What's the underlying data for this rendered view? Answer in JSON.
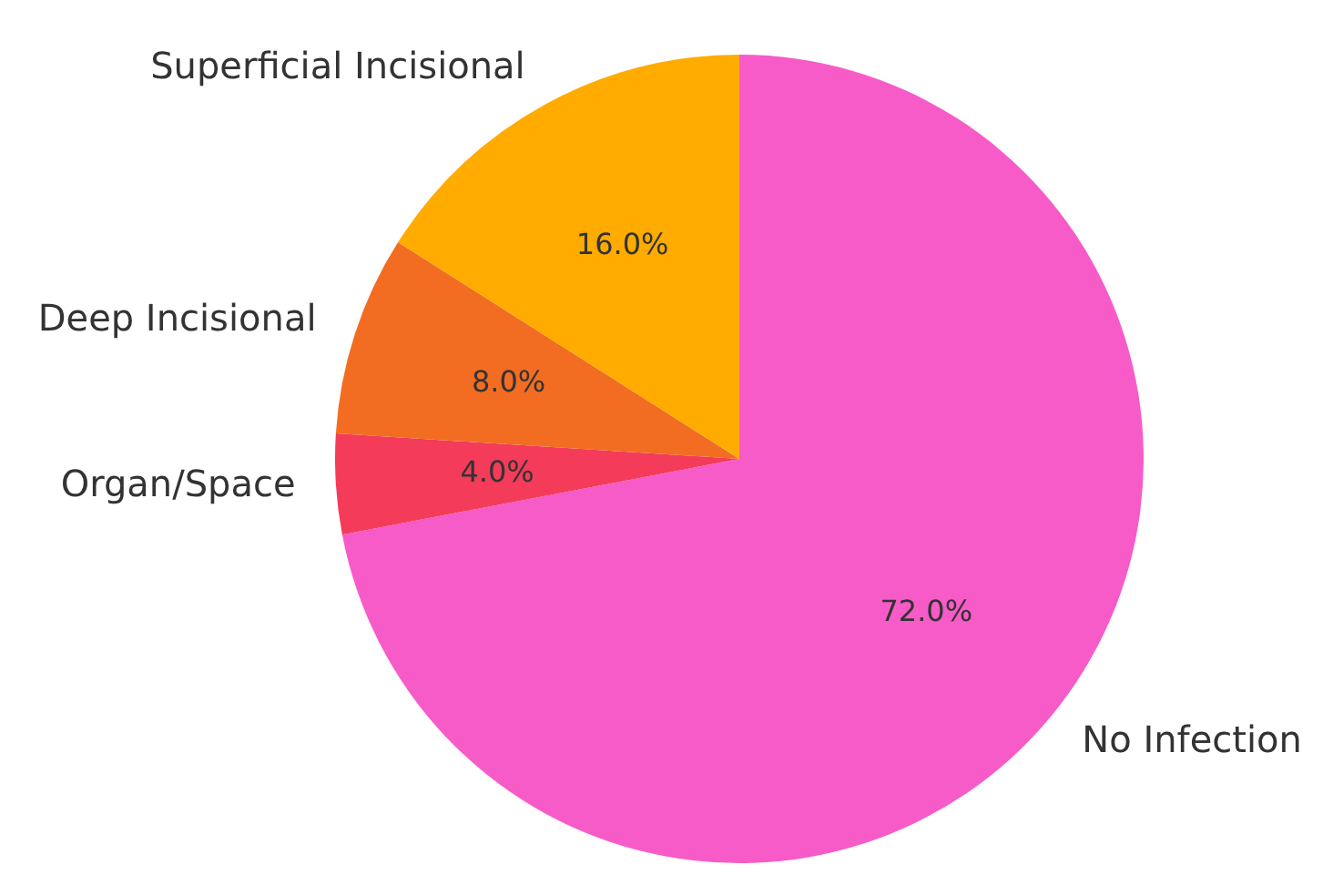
{
  "chart_data": {
    "type": "pie",
    "categories": [
      "No Infection",
      "Organ/Space",
      "Deep Incisional",
      "Superficial Incisional"
    ],
    "values": [
      72,
      4,
      8,
      16
    ],
    "colors": [
      "#f75bc8",
      "#f43b5a",
      "#f26d22",
      "#ffab00"
    ],
    "value_labels": [
      "72.0%",
      "4.0%",
      "8.0%",
      "16.0%"
    ],
    "legend": false
  }
}
